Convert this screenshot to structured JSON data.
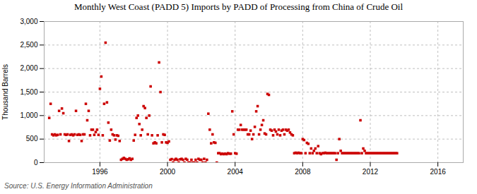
{
  "chart_data": {
    "type": "scatter",
    "title": "Monthly West Coast (PADD 5) Imports by PADD of Processing from China of Crude Oil",
    "ylabel": "Thousand Barrels",
    "caption": "Source: U.S. Energy Information Administration",
    "color": "#cc0000",
    "marker": "square",
    "grid": true,
    "xlim": [
      1992.7,
      2017.5
    ],
    "xticks": [
      1996,
      2000,
      2004,
      2008,
      2012,
      2016
    ],
    "ylim": [
      0,
      3000
    ],
    "yticks": [
      0,
      500,
      {
        "value": 1000,
        "label": "1,000"
      },
      {
        "value": 1500,
        "label": "1,500"
      },
      {
        "value": 2000,
        "label": "2,000"
      },
      {
        "value": 2500,
        "label": "2,500"
      },
      {
        "value": 3000,
        "label": "3,000"
      }
    ],
    "x": [
      1993,
      1993.0833,
      1993.1667,
      1993.25,
      1993.3333,
      1993.4167,
      1993.5,
      1993.5833,
      1993.6667,
      1993.75,
      1993.8333,
      1993.9167,
      1994,
      1994.0833,
      1994.1667,
      1994.25,
      1994.3333,
      1994.4167,
      1994.5,
      1994.5833,
      1994.6667,
      1994.75,
      1994.8333,
      1994.9167,
      1995,
      1995.0833,
      1995.1667,
      1995.25,
      1995.3333,
      1995.4167,
      1995.5,
      1995.5833,
      1995.6667,
      1995.75,
      1995.8333,
      1995.9167,
      1996,
      1996.0833,
      1996.1667,
      1996.25,
      1996.3333,
      1996.4167,
      1996.5,
      1996.5833,
      1996.6667,
      1996.75,
      1996.8333,
      1996.9167,
      1997,
      1997.0833,
      1997.1667,
      1997.25,
      1997.3333,
      1997.4167,
      1997.5,
      1997.5833,
      1997.6667,
      1997.75,
      1997.8333,
      1997.9167,
      1998,
      1998.0833,
      1998.1667,
      1998.25,
      1998.3333,
      1998.4167,
      1998.5,
      1998.5833,
      1998.6667,
      1998.75,
      1998.8333,
      1998.9167,
      1999,
      1999.0833,
      1999.1667,
      1999.25,
      1999.3333,
      1999.4167,
      1999.5,
      1999.5833,
      1999.6667,
      1999.75,
      1999.8333,
      1999.9167,
      2000,
      2000.0833,
      2000.1667,
      2000.25,
      2000.3333,
      2000.4167,
      2000.5,
      2000.5833,
      2000.6667,
      2000.75,
      2000.8333,
      2000.9167,
      2001,
      2001.0833,
      2001.1667,
      2001.25,
      2001.3333,
      2001.4167,
      2001.5,
      2001.5833,
      2001.6667,
      2001.75,
      2001.8333,
      2001.9167,
      2002,
      2002.0833,
      2002.1667,
      2002.25,
      2002.3333,
      2002.4167,
      2002.5,
      2002.5833,
      2002.6667,
      2002.75,
      2002.8333,
      2002.9167,
      2003,
      2003.0833,
      2003.1667,
      2003.25,
      2003.3333,
      2003.4167,
      2003.5,
      2003.5833,
      2003.6667,
      2003.75,
      2003.8333,
      2003.9167,
      2004,
      2004.0833,
      2004.1667,
      2004.25,
      2004.3333,
      2004.4167,
      2004.5,
      2004.5833,
      2004.6667,
      2004.75,
      2004.8333,
      2004.9167,
      2005,
      2005.0833,
      2005.1667,
      2005.25,
      2005.3333,
      2005.4167,
      2005.5,
      2005.5833,
      2005.6667,
      2005.75,
      2005.8333,
      2005.9167,
      2006,
      2006.0833,
      2006.1667,
      2006.25,
      2006.3333,
      2006.4167,
      2006.5,
      2006.5833,
      2006.6667,
      2006.75,
      2006.8333,
      2006.9167,
      2007,
      2007.0833,
      2007.1667,
      2007.25,
      2007.3333,
      2007.4167,
      2007.5,
      2007.5833,
      2007.6667,
      2007.75,
      2007.8333,
      2007.9167,
      2008,
      2008.0833,
      2008.1667,
      2008.25,
      2008.3333,
      2008.4167,
      2008.5,
      2008.5833,
      2008.6667,
      2008.75,
      2008.8333,
      2008.9167,
      2009,
      2009.0833,
      2009.1667,
      2009.25,
      2009.3333,
      2009.4167,
      2009.5,
      2009.5833,
      2009.6667,
      2009.75,
      2009.8333,
      2009.9167,
      2010,
      2010.0833,
      2010.1667,
      2010.25,
      2010.3333,
      2010.4167,
      2010.5,
      2010.5833,
      2010.6667,
      2010.75,
      2010.8333,
      2010.9167,
      2011,
      2011.0833,
      2011.1667,
      2011.25,
      2011.3333,
      2011.4167,
      2011.5,
      2011.5833,
      2011.6667,
      2011.75,
      2011.8333,
      2011.9167,
      2012,
      2012.0833,
      2012.1667,
      2012.25,
      2012.3333,
      2012.4167,
      2012.5,
      2012.5833,
      2012.6667,
      2012.75,
      2012.8333,
      2012.9167,
      2013,
      2013.0833,
      2013.1667,
      2013.25,
      2013.3333,
      2013.4167,
      2013.5,
      2013.5833
    ],
    "values": [
      950,
      1250,
      600,
      580,
      600,
      580,
      590,
      1100,
      600,
      1150,
      1050,
      600,
      590,
      600,
      460,
      590,
      600,
      580,
      600,
      1100,
      590,
      600,
      590,
      460,
      600,
      600,
      1250,
      900,
      1100,
      580,
      700,
      700,
      590,
      650,
      700,
      590,
      1570,
      1830,
      580,
      1250,
      2550,
      1280,
      850,
      470,
      700,
      600,
      580,
      490,
      580,
      570,
      460,
      60,
      80,
      100,
      80,
      60,
      70,
      90,
      60,
      80,
      470,
      590,
      950,
      1000,
      820,
      580,
      700,
      1200,
      1160,
      950,
      600,
      1000,
      1620,
      580,
      410,
      430,
      410,
      580,
      2130,
      1500,
      430,
      600,
      590,
      430,
      420,
      450,
      60,
      75,
      0,
      60,
      80,
      60,
      0,
      70,
      80,
      60,
      0,
      80,
      60,
      0,
      0,
      60,
      0,
      0,
      60,
      0,
      80,
      60,
      60,
      0,
      80,
      0,
      60,
      1040,
      700,
      410,
      600,
      430,
      420,
      0,
      200,
      200,
      180,
      190,
      180,
      190,
      180,
      200,
      190,
      190,
      1090,
      600,
      200,
      190,
      700,
      700,
      800,
      700,
      700,
      700,
      700,
      600,
      600,
      680,
      500,
      600,
      760,
      1090,
      1200,
      600,
      700,
      800,
      900,
      620,
      600,
      1460,
      1440,
      700,
      680,
      580,
      700,
      660,
      600,
      700,
      580,
      680,
      700,
      600,
      700,
      680,
      700,
      640,
      600,
      580,
      200,
      210,
      200,
      210,
      200,
      200,
      500,
      480,
      200,
      420,
      400,
      200,
      300,
      200,
      250,
      300,
      200,
      350,
      200,
      180,
      200,
      200,
      210,
      200,
      200,
      200,
      200,
      200,
      200,
      200,
      60,
      200,
      500,
      250,
      200,
      200,
      200,
      200,
      200,
      200,
      200,
      200,
      200,
      200,
      200,
      200,
      200,
      900,
      200,
      300,
      250,
      200,
      200,
      200,
      200,
      200,
      200,
      200,
      200,
      200,
      200,
      200,
      200,
      200,
      200,
      200,
      200,
      200,
      200,
      200,
      200,
      200,
      200,
      200
    ]
  }
}
